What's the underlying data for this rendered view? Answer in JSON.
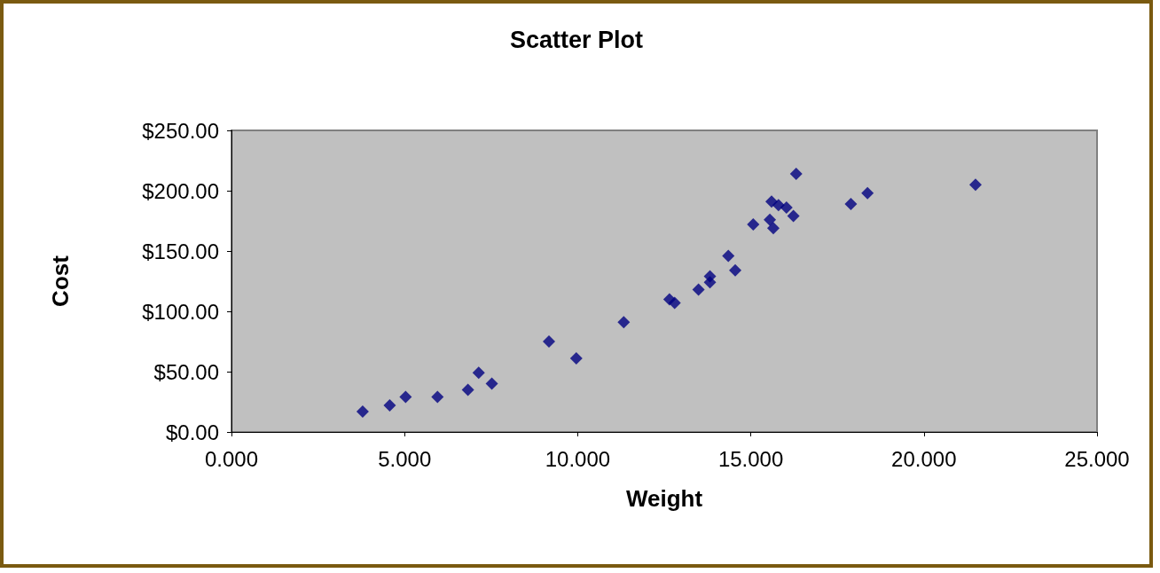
{
  "chart_data": {
    "type": "scatter",
    "title": "Scatter Plot",
    "xlabel": "Weight",
    "ylabel": "Cost",
    "x": [
      3.79,
      4.57,
      5.03,
      5.95,
      6.83,
      7.14,
      7.52,
      9.17,
      9.96,
      11.33,
      12.65,
      12.8,
      13.49,
      13.82,
      13.82,
      14.35,
      14.55,
      15.07,
      15.55,
      15.6,
      15.8,
      16.03,
      15.65,
      16.23,
      16.31,
      17.89,
      18.37,
      21.49
    ],
    "series": [
      {
        "color": "#000080",
        "values": [
          17,
          22,
          29,
          29,
          35,
          49,
          40,
          75,
          61,
          91,
          110,
          107,
          118,
          129,
          124,
          146,
          134,
          172,
          176,
          191,
          188,
          186,
          169,
          179,
          214,
          189,
          198,
          205
        ]
      }
    ],
    "xlim": [
      0,
      25
    ],
    "xticks": [
      {
        "value": 0,
        "label": "0.000"
      },
      {
        "value": 5,
        "label": "5.000"
      },
      {
        "value": 10,
        "label": "10.000"
      },
      {
        "value": 15,
        "label": "15.000"
      },
      {
        "value": 20,
        "label": "20.000"
      },
      {
        "value": 25,
        "label": "25.000"
      }
    ],
    "ylim": [
      0,
      250
    ],
    "yticks": [
      {
        "value": 0,
        "label": "$0.00"
      },
      {
        "value": 50,
        "label": "$50.00"
      },
      {
        "value": 100,
        "label": "$100.00"
      },
      {
        "value": 150,
        "label": "$150.00"
      },
      {
        "value": 200,
        "label": "$200.00"
      },
      {
        "value": 250,
        "label": "$250.00"
      }
    ],
    "marker": "diamond"
  }
}
